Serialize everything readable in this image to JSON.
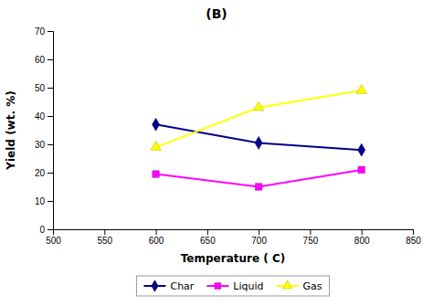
{
  "chart_data": {
    "type": "line",
    "title": "(B)",
    "x_label": "Temperature ( C)",
    "y_label": "Yield (wt. %)",
    "x": [
      600,
      700,
      800
    ],
    "series": [
      {
        "name": "Char",
        "color": "#00008B",
        "marker": "diamond",
        "values": [
          37,
          30.5,
          28
        ]
      },
      {
        "name": "Liquid",
        "color": "#FF00FF",
        "marker": "square",
        "values": [
          19.5,
          15,
          21
        ]
      },
      {
        "name": "Gas",
        "color": "#FFFF00",
        "marker": "triangle",
        "values": [
          29,
          43,
          49
        ]
      }
    ],
    "xlim": [
      500,
      850
    ],
    "ylim": [
      0,
      70
    ],
    "xticks": [
      500,
      550,
      600,
      650,
      700,
      750,
      800,
      850
    ],
    "yticks": [
      0,
      10,
      20,
      30,
      40,
      50,
      60,
      70
    ],
    "grid": false,
    "legend": "bottom"
  }
}
